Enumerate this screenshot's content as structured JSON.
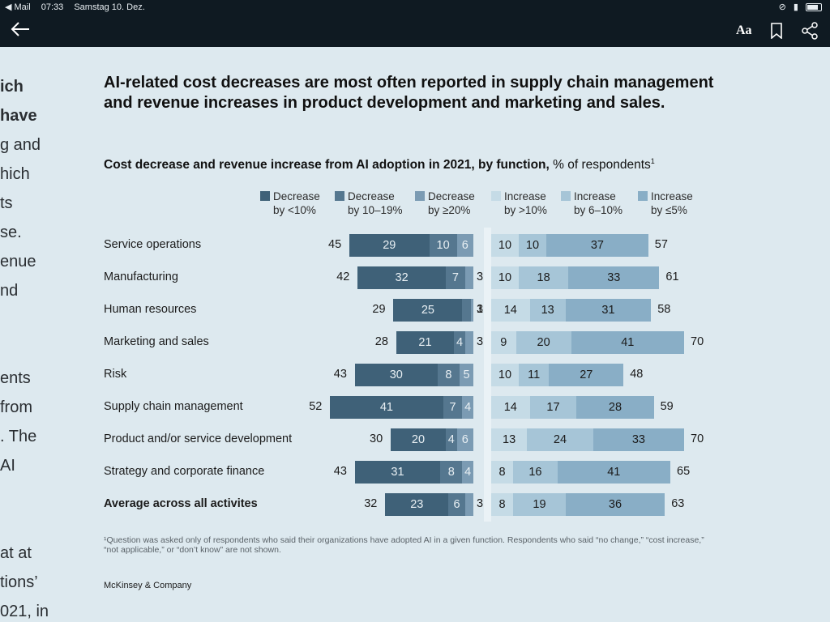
{
  "status_bar": {
    "back_app": "◀ Mail",
    "time": "07:33",
    "date": "Samstag 10. Dez."
  },
  "nav": {
    "text_size_label": "Aa"
  },
  "article_fragments": [
    {
      "text": "ich",
      "bold": true
    },
    {
      "text": "have",
      "bold": true
    },
    {
      "text": "g and",
      "bold": false
    },
    {
      "text": "hich",
      "bold": false
    },
    {
      "text": "ts",
      "bold": false
    },
    {
      "text": "se.",
      "bold": false
    },
    {
      "text": "enue",
      "bold": false
    },
    {
      "text": "nd",
      "bold": false
    },
    {
      "text": "ents",
      "bold": false
    },
    {
      "text": " from",
      "bold": false
    },
    {
      "text": ". The",
      "bold": false
    },
    {
      "text": "AI",
      "bold": false
    },
    {
      "text": "at at",
      "bold": false
    },
    {
      "text": "tions’",
      "bold": false
    },
    {
      "text": "021, in",
      "bold": false
    }
  ],
  "headline": "AI-related cost decreases are most often reported in supply chain management and revenue increases in product development and marketing and sales.",
  "subtitle_bold": "Cost decrease and revenue increase from AI adoption in 2021, by function,",
  "subtitle_rest": " % of respondents",
  "subtitle_sup": "1",
  "footnote": "¹Question was asked only of respondents who said their organizations have adopted AI in a given function. Respondents who said “no change,” “cost increase,” “not applicable,” or “don’t know” are not shown.",
  "brand": "McKinsey & Company",
  "colors": {
    "background": "#dde9ef",
    "dec_lt10": "#3f6178",
    "dec_10_19": "#55778f",
    "dec_ge20": "#7b9bb3",
    "inc_gt10": "#c5dbe6",
    "inc_6_10": "#a6c5d7",
    "inc_le5": "#89aec6",
    "nav_bg": "#0f1a22"
  },
  "chart_data": {
    "type": "bar",
    "orientation": "horizontal-diverging",
    "title": "Cost decrease and revenue increase from AI adoption in 2021, by function",
    "unit": "% of respondents",
    "legend": [
      {
        "line1": "Decrease",
        "line2": "by <10%"
      },
      {
        "line1": "Decrease",
        "line2": "by 10–19%"
      },
      {
        "line1": "Decrease",
        "line2": "by ≥20%"
      },
      {
        "line1": "Increase",
        "line2": "by >10%"
      },
      {
        "line1": "Increase",
        "line2": "by 6–10%"
      },
      {
        "line1": "Increase",
        "line2": "by ≤5%"
      }
    ],
    "rows": [
      {
        "label": "Service operations",
        "dec_total": "45",
        "decrease": [
          29,
          10,
          6
        ],
        "increase": [
          10,
          10,
          37
        ],
        "inc_total": "57",
        "bold": false
      },
      {
        "label": "Manufacturing",
        "dec_total": "42",
        "decrease": [
          32,
          7,
          3
        ],
        "increase": [
          10,
          18,
          33
        ],
        "inc_total": "61",
        "bold": false
      },
      {
        "label": "Human resources",
        "dec_total": "29",
        "decrease": [
          25,
          3,
          1
        ],
        "increase": [
          14,
          13,
          31
        ],
        "inc_total": "58",
        "bold": false
      },
      {
        "label": "Marketing and sales",
        "dec_total": "28",
        "decrease": [
          21,
          4,
          3
        ],
        "increase": [
          9,
          20,
          41
        ],
        "inc_total": "70",
        "bold": false
      },
      {
        "label": "Risk",
        "dec_total": "43",
        "decrease": [
          30,
          8,
          5
        ],
        "increase": [
          10,
          11,
          27
        ],
        "inc_total": "48",
        "bold": false
      },
      {
        "label": "Supply chain management",
        "dec_total": "52",
        "decrease": [
          41,
          7,
          4
        ],
        "increase": [
          14,
          17,
          28
        ],
        "inc_total": "59",
        "bold": false
      },
      {
        "label": "Product and/or service development",
        "dec_total": "30",
        "decrease": [
          20,
          4,
          6
        ],
        "increase": [
          13,
          24,
          33
        ],
        "inc_total": "70",
        "bold": false
      },
      {
        "label": "Strategy and corporate finance",
        "dec_total": "43",
        "decrease": [
          31,
          8,
          4
        ],
        "increase": [
          8,
          16,
          41
        ],
        "inc_total": "65",
        "bold": false
      },
      {
        "label": "Average across all activites",
        "dec_total": "32",
        "decrease": [
          23,
          6,
          3
        ],
        "increase": [
          8,
          19,
          36
        ],
        "inc_total": "63",
        "bold": true
      }
    ]
  }
}
